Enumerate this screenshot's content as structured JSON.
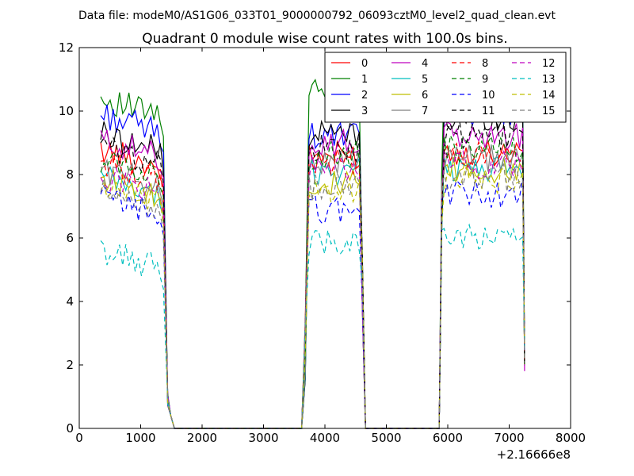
{
  "suptitle": "Data file: modeM0/AS1G06_033T01_9000000792_06093cztM0_level2_quad_clean.evt",
  "chart_data": {
    "type": "line",
    "title": "Quadrant 0 module wise count rates with 100.0s bins.",
    "xlabel": "",
    "ylabel": "",
    "xlim": [
      0,
      8000
    ],
    "ylim": [
      0,
      12
    ],
    "x_offset_label": "+2.16666e8",
    "xticks": [
      0,
      1000,
      2000,
      3000,
      4000,
      5000,
      6000,
      7000,
      8000
    ],
    "yticks": [
      0,
      2,
      4,
      6,
      8,
      10,
      12
    ],
    "grid": false,
    "legend": "top-right",
    "segments": [
      {
        "t0": 350,
        "t1": 1370,
        "n": 21
      },
      {
        "t0": 3740,
        "t1": 4560,
        "n": 17
      },
      {
        "t0": 5940,
        "t1": 7220,
        "n": 26
      }
    ],
    "gaps": [
      [
        1550,
        3620
      ],
      [
        4660,
        5860
      ]
    ],
    "series": [
      {
        "name": "0",
        "color": "#ff0000",
        "dash": false,
        "levels": [
          8.8,
          8.6,
          8.7
        ]
      },
      {
        "name": "1",
        "color": "#008000",
        "dash": false,
        "levels": [
          10.4,
          10.6,
          11.2
        ]
      },
      {
        "name": "2",
        "color": "#0000ff",
        "dash": false,
        "levels": [
          9.9,
          9.2,
          10.0
        ]
      },
      {
        "name": "3",
        "color": "#000000",
        "dash": false,
        "levels": [
          9.3,
          9.3,
          9.8
        ]
      },
      {
        "name": "4",
        "color": "#bf00bf",
        "dash": false,
        "levels": [
          9.1,
          9.0,
          9.2
        ]
      },
      {
        "name": "5",
        "color": "#00bfbf",
        "dash": false,
        "levels": [
          7.9,
          8.1,
          8.2
        ]
      },
      {
        "name": "6",
        "color": "#bfbf00",
        "dash": false,
        "levels": [
          7.9,
          7.7,
          8.1
        ]
      },
      {
        "name": "7",
        "color": "#808080",
        "dash": false,
        "levels": [
          8.2,
          8.4,
          8.5
        ]
      },
      {
        "name": "8",
        "color": "#ff0000",
        "dash": true,
        "levels": [
          8.4,
          8.4,
          8.6
        ]
      },
      {
        "name": "9",
        "color": "#008000",
        "dash": true,
        "levels": [
          8.5,
          8.6,
          8.8
        ]
      },
      {
        "name": "10",
        "color": "#0000ff",
        "dash": true,
        "levels": [
          7.3,
          6.9,
          7.4
        ]
      },
      {
        "name": "11",
        "color": "#000000",
        "dash": true,
        "levels": [
          8.9,
          8.8,
          9.2
        ]
      },
      {
        "name": "12",
        "color": "#bf00bf",
        "dash": true,
        "levels": [
          8.0,
          8.2,
          8.3
        ]
      },
      {
        "name": "13",
        "color": "#00bfbf",
        "dash": true,
        "levels": [
          5.6,
          5.9,
          6.0
        ]
      },
      {
        "name": "14",
        "color": "#bfbf00",
        "dash": true,
        "levels": [
          7.6,
          7.5,
          7.8
        ]
      },
      {
        "name": "15",
        "color": "#808080",
        "dash": true,
        "levels": [
          7.5,
          7.6,
          7.9
        ]
      }
    ]
  }
}
